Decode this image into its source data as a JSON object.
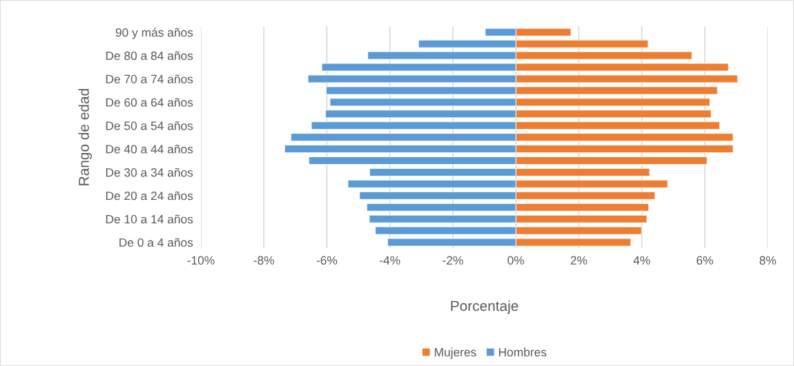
{
  "chart_data": {
    "type": "bar",
    "orientation": "horizontal",
    "xlabel": "Porcentaje",
    "ylabel": "Rango de edad",
    "categories": [
      "90 y más años",
      null,
      "De 80 a 84 años",
      null,
      "De 70 a 74 años",
      null,
      "De 60 a 64 años",
      null,
      "De 50 a 54 años",
      null,
      "De 40 a 44 años",
      null,
      "De 30 a 34 años",
      null,
      "De 20 a 24 años",
      null,
      "De 10 a 14 años",
      null,
      "De 0 a 4 años"
    ],
    "series": [
      {
        "name": "Mujeres",
        "color": "#ed7d31",
        "values": [
          1.75,
          4.2,
          5.59,
          6.75,
          7.04,
          6.4,
          6.16,
          6.2,
          6.47,
          6.9,
          6.9,
          6.07,
          4.25,
          4.82,
          4.42,
          4.22,
          4.16,
          3.99,
          3.65
        ]
      },
      {
        "name": "Hombres",
        "color": "#5b9bd5",
        "values": [
          -0.97,
          -3.09,
          -4.7,
          -6.16,
          -6.6,
          -6.02,
          -5.9,
          -6.04,
          -6.49,
          -7.14,
          -7.34,
          -6.57,
          -4.64,
          -5.33,
          -4.96,
          -4.73,
          -4.65,
          -4.46,
          -4.07
        ]
      }
    ],
    "xlim": [
      -10,
      8
    ],
    "xticks": [
      {
        "value": -10,
        "label": "-10%"
      },
      {
        "value": -8,
        "label": "-8%"
      },
      {
        "value": -6,
        "label": "-6%"
      },
      {
        "value": -4,
        "label": "-4%"
      },
      {
        "value": -2,
        "label": "-2%"
      },
      {
        "value": 0,
        "label": "0%"
      },
      {
        "value": 2,
        "label": "2%"
      },
      {
        "value": 4,
        "label": "4%"
      },
      {
        "value": 6,
        "label": "6%"
      },
      {
        "value": 8,
        "label": "8%"
      }
    ],
    "grid": "x",
    "legend": "bottom",
    "stacked": true
  }
}
